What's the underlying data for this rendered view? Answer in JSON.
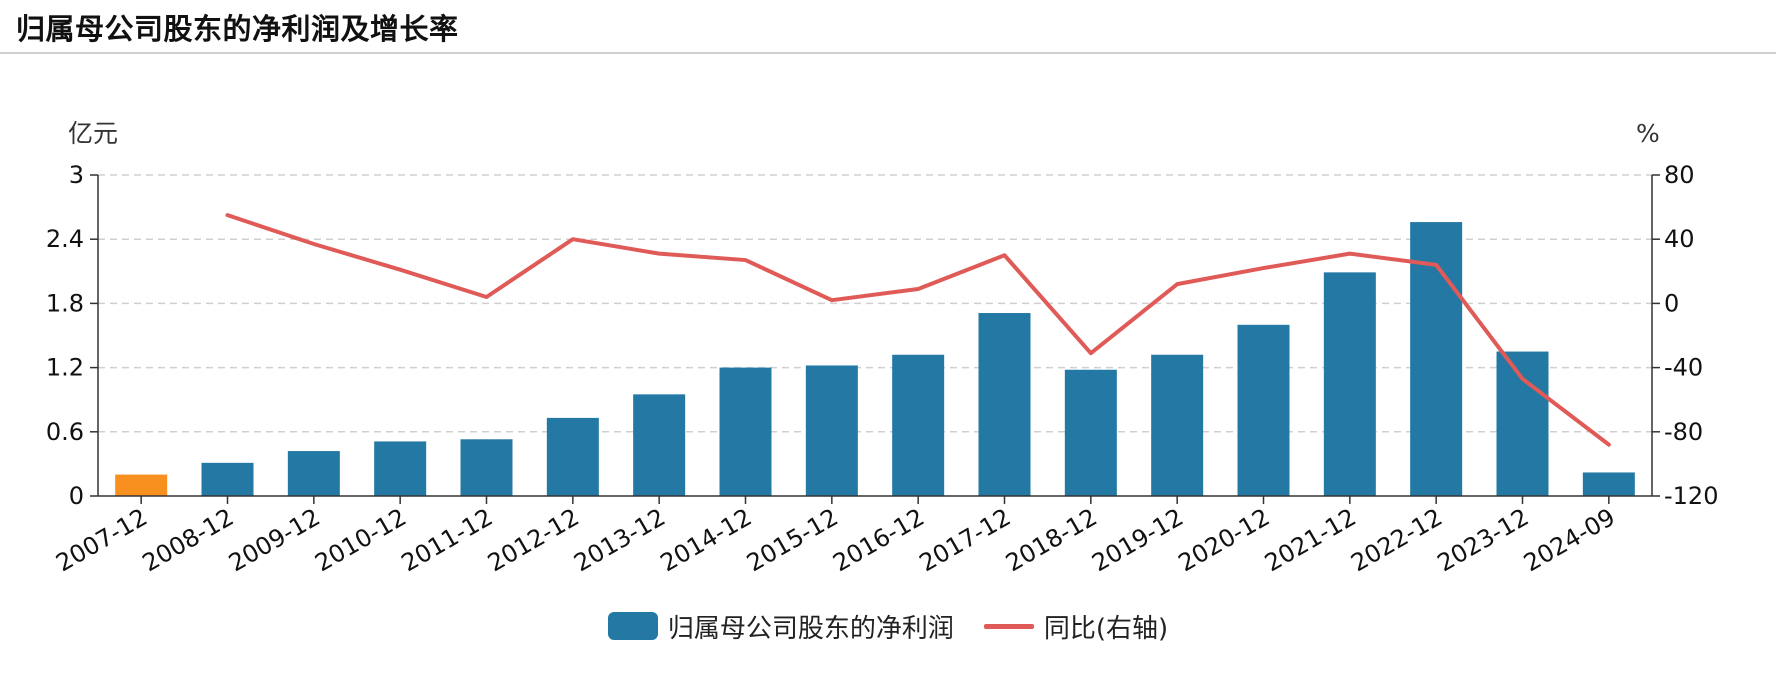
{
  "page": {
    "title": "归属母公司股东的净利润及增长率"
  },
  "colors": {
    "bar": "#2378a4",
    "bar_highlight": "#f7901e",
    "line": "#e05a57",
    "grid": "#d0d0d0",
    "axis": "#333333"
  },
  "chart_data": {
    "type": "bar",
    "categories": [
      "2007-12",
      "2008-12",
      "2009-12",
      "2010-12",
      "2011-12",
      "2012-12",
      "2013-12",
      "2014-12",
      "2015-12",
      "2016-12",
      "2017-12",
      "2018-12",
      "2019-12",
      "2020-12",
      "2021-12",
      "2022-12",
      "2023-12",
      "2024-09"
    ],
    "highlight_index": 0,
    "left_axis": {
      "unit": "亿元",
      "ylim": [
        0,
        3
      ],
      "ticks": [
        "0",
        "0.6",
        "1.2",
        "1.8",
        "2.4",
        "3"
      ]
    },
    "right_axis": {
      "unit": "%",
      "ylim": [
        -120,
        80
      ],
      "ticks": [
        "-120",
        "-80",
        "-40",
        "0",
        "40",
        "80"
      ]
    },
    "grid": true,
    "legend_position": "bottom-center",
    "series": [
      {
        "name": "归属母公司股东的净利润",
        "kind": "bar",
        "axis": "left",
        "values": [
          0.2,
          0.31,
          0.42,
          0.51,
          0.53,
          0.73,
          0.95,
          1.2,
          1.22,
          1.32,
          1.71,
          1.18,
          1.32,
          1.6,
          2.09,
          2.56,
          1.35,
          0.22
        ]
      },
      {
        "name": "同比(右轴)",
        "kind": "line",
        "axis": "right",
        "values": [
          null,
          55,
          37,
          21,
          4,
          40,
          31,
          27,
          2,
          9,
          30,
          -31,
          12,
          22,
          31,
          24,
          -47,
          -88
        ]
      }
    ]
  }
}
